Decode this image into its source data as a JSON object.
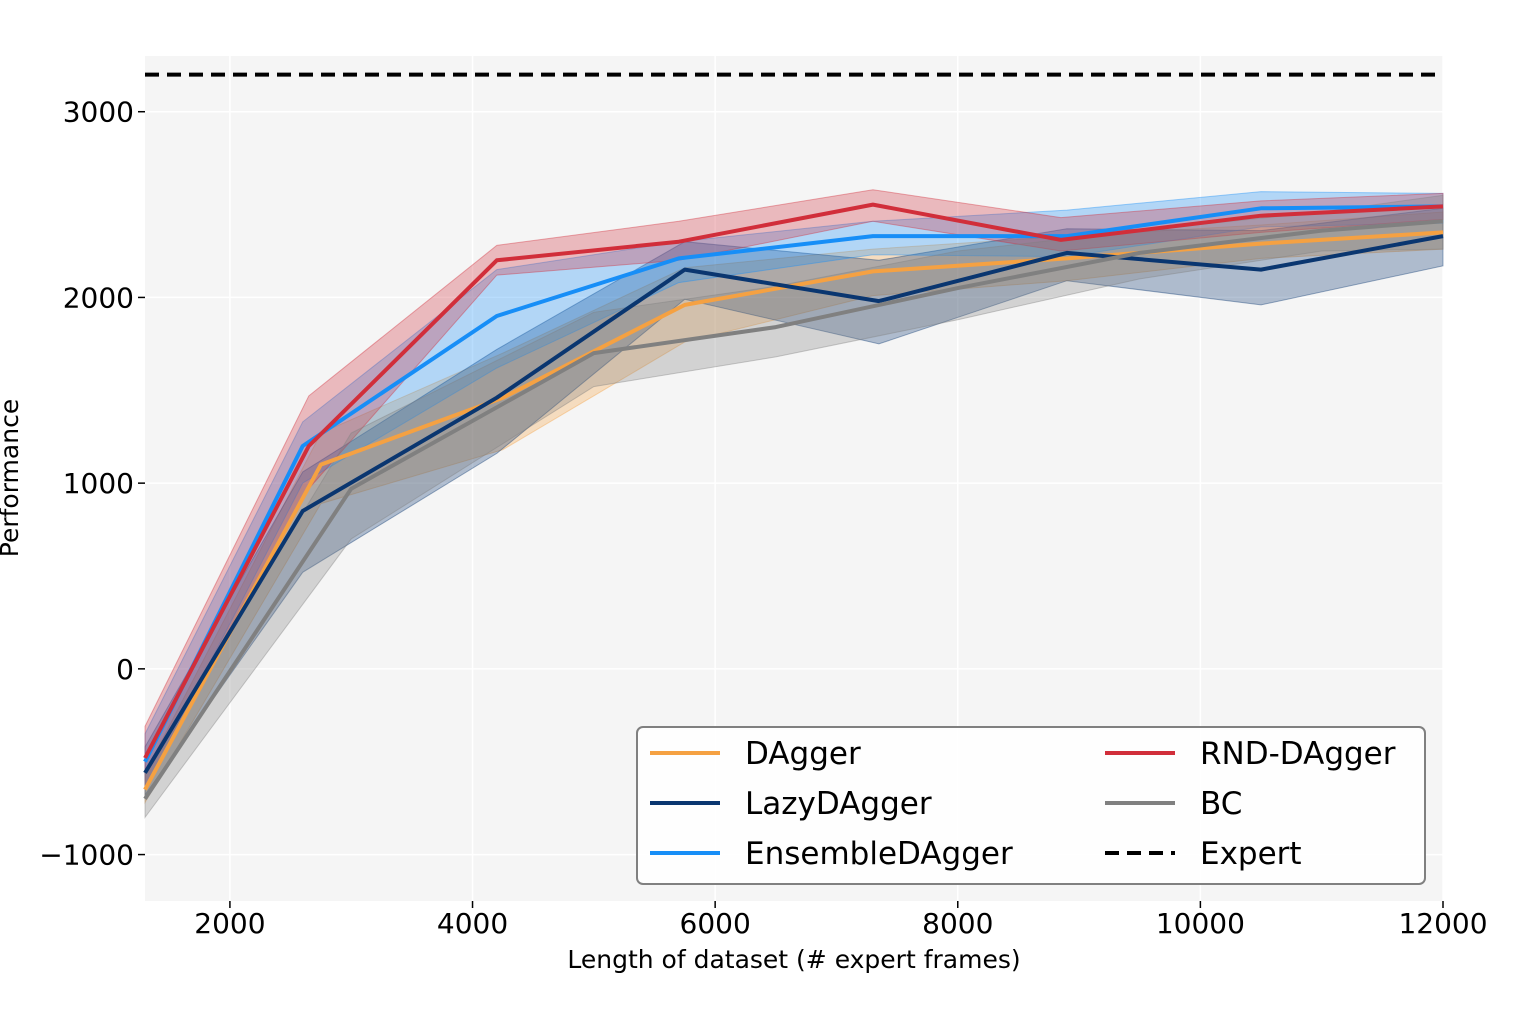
{
  "chart_data": {
    "type": "line",
    "title": "",
    "xlabel": "Length of dataset (# expert frames)",
    "ylabel": "Performance",
    "xlim": [
      1300,
      12000
    ],
    "ylim": [
      -1250,
      3300
    ],
    "xticks": [
      2000,
      4000,
      6000,
      8000,
      10000,
      12000
    ],
    "xtick_labels": [
      "2000",
      "4000",
      "6000",
      "8000",
      "10000",
      "12000"
    ],
    "yticks": [
      -1000,
      0,
      1000,
      2000,
      3000
    ],
    "ytick_labels": [
      "−1000",
      "0",
      "1000",
      "2000",
      "3000"
    ],
    "grid": true,
    "legend_position": "lower-right",
    "legend_columns": 2,
    "series": [
      {
        "name": "DAgger",
        "color": "#f5a142",
        "x": [
          1300,
          2750,
          4250,
          5750,
          7300,
          8900,
          10500,
          12000
        ],
        "y": [
          -650,
          1100,
          1460,
          1960,
          2140,
          2210,
          2290,
          2350
        ],
        "lower": [
          -720,
          890,
          1180,
          1760,
          2010,
          2090,
          2210,
          2260
        ],
        "upper": [
          -560,
          1270,
          1700,
          2160,
          2260,
          2330,
          2390,
          2460
        ]
      },
      {
        "name": "LazyDAgger",
        "color": "#0a3670",
        "x": [
          1300,
          2600,
          4200,
          5750,
          7350,
          8900,
          10500,
          12000
        ],
        "y": [
          -560,
          850,
          1460,
          2150,
          1980,
          2240,
          2150,
          2330
        ],
        "lower": [
          -680,
          520,
          1160,
          1990,
          1750,
          2090,
          1960,
          2170
        ],
        "upper": [
          -420,
          1060,
          1720,
          2300,
          2200,
          2370,
          2360,
          2480
        ]
      },
      {
        "name": "EnsembleDAgger",
        "color": "#178ef7",
        "x": [
          1300,
          2600,
          4200,
          5700,
          7300,
          8900,
          10500,
          12000
        ],
        "y": [
          -500,
          1200,
          1900,
          2210,
          2330,
          2330,
          2480,
          2490
        ],
        "lower": [
          -640,
          1000,
          1620,
          2080,
          2230,
          2220,
          2380,
          2400
        ],
        "upper": [
          -350,
          1330,
          2150,
          2300,
          2410,
          2470,
          2570,
          2560
        ]
      },
      {
        "name": "RND-DAgger",
        "color": "#d12e3a",
        "x": [
          1300,
          2650,
          4200,
          5700,
          7300,
          8850,
          10500,
          12000
        ],
        "y": [
          -480,
          1200,
          2200,
          2300,
          2500,
          2310,
          2440,
          2490
        ],
        "lower": [
          -650,
          970,
          2120,
          2200,
          2410,
          2250,
          2350,
          2420
        ],
        "upper": [
          -310,
          1470,
          2280,
          2410,
          2580,
          2430,
          2520,
          2560
        ]
      },
      {
        "name": "BC",
        "color": "#808080",
        "x": [
          1300,
          3000,
          5000,
          6500,
          8000,
          9500,
          11000,
          12000
        ],
        "y": [
          -700,
          970,
          1700,
          1840,
          2050,
          2240,
          2360,
          2410
        ],
        "lower": [
          -800,
          700,
          1520,
          1680,
          1880,
          2100,
          2250,
          2260
        ],
        "upper": [
          -560,
          1270,
          1920,
          2060,
          2250,
          2360,
          2460,
          2550
        ]
      },
      {
        "name": "Expert",
        "color": "#000000",
        "dashed": true,
        "x": [
          1300,
          12000
        ],
        "y": [
          3200,
          3200
        ]
      }
    ]
  }
}
